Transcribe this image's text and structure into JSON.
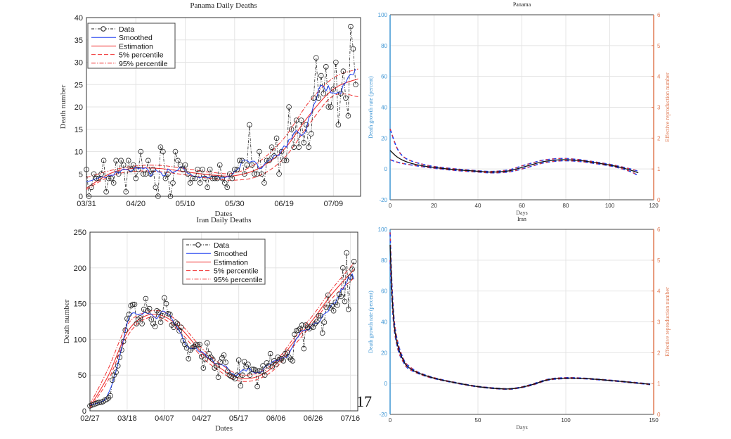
{
  "page_number": "17",
  "chart_data": [
    {
      "id": "panama-daily",
      "type": "line",
      "title": "Panama Daily Deaths",
      "xlabel": "Dates",
      "ylabel": "Death number",
      "ylim": [
        0,
        40
      ],
      "yticks": [
        0,
        5,
        10,
        15,
        20,
        25,
        30,
        35,
        40
      ],
      "xticks": [
        {
          "day": 0,
          "label": "03/31"
        },
        {
          "day": 20,
          "label": "04/20"
        },
        {
          "day": 40,
          "label": "05/10"
        },
        {
          "day": 60,
          "label": "05/30"
        },
        {
          "day": 80,
          "label": "06/19"
        },
        {
          "day": 100,
          "label": "07/09"
        }
      ],
      "xlim_days": [
        0,
        111
      ],
      "legend": [
        "Data",
        "Smoothed",
        "Estimation",
        "5% percentile",
        "95% percentile"
      ],
      "legend_position": "top-left",
      "data": [
        6,
        0,
        2,
        5,
        4,
        4,
        5,
        8,
        1,
        4,
        4,
        3,
        8,
        5,
        8,
        7,
        1,
        8,
        6,
        7,
        4,
        6,
        10,
        5,
        5,
        8,
        5,
        6,
        2,
        0,
        11,
        10,
        4,
        5,
        0,
        3,
        10,
        8,
        7,
        6,
        7,
        5,
        3,
        4,
        4,
        6,
        3,
        6,
        4,
        2,
        6,
        4,
        4,
        4,
        7,
        4,
        3,
        2,
        5,
        4,
        6,
        6,
        8,
        8,
        5,
        7,
        16,
        7,
        5,
        5,
        10,
        5,
        3,
        8,
        8,
        11,
        9,
        13,
        5,
        10,
        8,
        8,
        20,
        15,
        11,
        17,
        11,
        17,
        12,
        16,
        11,
        14,
        22,
        31,
        22,
        27,
        23,
        29,
        20,
        20,
        24,
        30,
        16,
        23,
        28,
        22,
        18,
        38,
        33,
        25
      ],
      "curve_days": [
        0,
        10,
        20,
        30,
        40,
        50,
        60,
        70,
        80,
        90,
        100,
        110
      ],
      "estimation": [
        1.8,
        5.2,
        6.3,
        6.2,
        5.5,
        4.8,
        4.6,
        6.3,
        10.5,
        18,
        24,
        26.3
      ],
      "p5": [
        1.5,
        4.6,
        5.6,
        5.5,
        4.8,
        4.0,
        3.6,
        4.6,
        8.5,
        16,
        22.5,
        22.3
      ],
      "p95": [
        4.2,
        5.8,
        6.8,
        6.9,
        6.2,
        5.4,
        5.2,
        7.8,
        13,
        21,
        26.5,
        28.5
      ]
    },
    {
      "id": "panama-growth",
      "type": "line",
      "title": "Panama",
      "xlabel": "Days",
      "ylabel": "Death growth rate (percent)",
      "ylabel_right": "Effective reproduction number",
      "xlim": [
        0,
        120
      ],
      "ylim": [
        -20,
        100
      ],
      "ylim_right": [
        0,
        6
      ],
      "xticks": [
        0,
        20,
        40,
        60,
        80,
        100,
        120
      ],
      "yticks": [
        -20,
        0,
        20,
        40,
        60,
        80,
        100
      ],
      "yticks_right": [
        0,
        1,
        2,
        3,
        4,
        5,
        6
      ],
      "x": [
        0,
        3,
        6,
        10,
        15,
        20,
        30,
        40,
        45,
        50,
        55,
        60,
        65,
        70,
        78,
        85,
        90,
        100,
        105,
        110,
        113
      ],
      "center": [
        12,
        8,
        5.5,
        3.5,
        2,
        1,
        -0.5,
        -1.5,
        -2,
        -1.8,
        -1,
        1,
        3,
        4.8,
        6,
        5.6,
        4.8,
        2.5,
        1,
        -1,
        -2.5
      ],
      "upper": [
        26,
        14,
        8,
        5,
        3,
        1.6,
        0,
        -1.2,
        -1.6,
        -1.3,
        -0.3,
        2,
        4,
        5.8,
        6.8,
        6.2,
        5.3,
        3,
        1.5,
        -0.2,
        -1.5
      ],
      "lower": [
        6,
        4.5,
        3.5,
        2.5,
        1.4,
        0.5,
        -1,
        -2,
        -2.5,
        -2.4,
        -1.7,
        0,
        2,
        4,
        5.3,
        5,
        4.2,
        2,
        0.3,
        -2,
        -4.5
      ]
    },
    {
      "id": "iran-daily",
      "type": "line",
      "title": "Iran Daily Deaths",
      "xlabel": "Dates",
      "ylabel": "Death number",
      "ylim": [
        0,
        250
      ],
      "yticks": [
        0,
        50,
        100,
        150,
        200,
        250
      ],
      "xticks": [
        {
          "day": 0,
          "label": "02/27"
        },
        {
          "day": 20,
          "label": "03/18"
        },
        {
          "day": 40,
          "label": "04/07"
        },
        {
          "day": 60,
          "label": "04/27"
        },
        {
          "day": 80,
          "label": "05/17"
        },
        {
          "day": 100,
          "label": "06/06"
        },
        {
          "day": 120,
          "label": "06/26"
        },
        {
          "day": 140,
          "label": "07/16"
        }
      ],
      "xlim_days": [
        0,
        144
      ],
      "legend": [
        "Data",
        "Smoothed",
        "Estimation",
        "5% percentile",
        "95% percentile"
      ],
      "legend_position": "top-center",
      "data": [
        7,
        8,
        9,
        10,
        11,
        12,
        12,
        13,
        15,
        16,
        18,
        21,
        43,
        50,
        54,
        63,
        75,
        85,
        97,
        113,
        129,
        135,
        147,
        149,
        149,
        122,
        128,
        130,
        122,
        142,
        157,
        140,
        143,
        128,
        122,
        118,
        140,
        138,
        124,
        133,
        158,
        150,
        136,
        135,
        120,
        117,
        124,
        122,
        112,
        117,
        98,
        93,
        88,
        73,
        85,
        88,
        90,
        93,
        92,
        93,
        76,
        60,
        72,
        95,
        80,
        75,
        72,
        60,
        63,
        47,
        68,
        74,
        78,
        68,
        55,
        50,
        48,
        47,
        45,
        50,
        71,
        35,
        50,
        69,
        62,
        65,
        50,
        58,
        58,
        57,
        34,
        56,
        55,
        63,
        50,
        67,
        63,
        80,
        62,
        70,
        65,
        75,
        72,
        73,
        70,
        80,
        82,
        75,
        72,
        70,
        107,
        112,
        113,
        115,
        120,
        87,
        120,
        117,
        115,
        118,
        117,
        122,
        125,
        133,
        133,
        109,
        124,
        145,
        162,
        144,
        147,
        140,
        152,
        148,
        163,
        160,
        200,
        153,
        221,
        142,
        187,
        198,
        209
      ],
      "curve_days": [
        0,
        10,
        20,
        30,
        40,
        50,
        60,
        70,
        80,
        90,
        100,
        110,
        120,
        130,
        142
      ],
      "estimation": [
        6,
        50,
        110,
        133,
        132,
        112,
        82,
        60,
        46,
        48,
        65,
        98,
        128,
        163,
        198
      ],
      "p5": [
        4,
        44,
        104,
        129,
        128,
        106,
        76,
        55,
        42,
        44,
        60,
        92,
        123,
        157,
        186
      ],
      "p95": [
        9,
        60,
        120,
        138,
        138,
        118,
        88,
        66,
        51,
        53,
        70,
        103,
        134,
        170,
        207
      ]
    },
    {
      "id": "iran-growth",
      "type": "line",
      "title": "Iran",
      "xlabel": "Days",
      "ylabel": "Death growth rate (percent)",
      "ylabel_right": "Effective reproduction number",
      "xlim": [
        0,
        150
      ],
      "ylim": [
        -20,
        100
      ],
      "ylim_right": [
        0,
        6
      ],
      "xticks": [
        0,
        50,
        100,
        150
      ],
      "yticks": [
        -20,
        0,
        20,
        40,
        60,
        80,
        100
      ],
      "yticks_right": [
        0,
        1,
        2,
        3,
        4,
        5,
        6
      ],
      "x": [
        0,
        1,
        2,
        3,
        5,
        8,
        10,
        14,
        18,
        25,
        35,
        50,
        65,
        72,
        80,
        90,
        100,
        110,
        120,
        135,
        148
      ],
      "center": [
        90,
        60,
        42,
        32,
        22,
        14,
        11,
        8,
        6,
        3.5,
        1,
        -2,
        -3.5,
        -3,
        -1,
        2.5,
        3.5,
        3.3,
        2.5,
        1,
        -0.5
      ],
      "upper": [
        98,
        66,
        46,
        35,
        24,
        15,
        12,
        8.6,
        6.4,
        3.8,
        1.2,
        -1.8,
        -3.3,
        -2.8,
        -0.7,
        2.8,
        3.8,
        3.5,
        2.7,
        1.2,
        -0.3
      ],
      "lower": [
        80,
        55,
        39,
        30,
        20,
        13,
        10,
        7.5,
        5.6,
        3.2,
        0.8,
        -2.2,
        -3.7,
        -3.2,
        -1.3,
        2.2,
        3.2,
        3.1,
        2.3,
        0.8,
        -0.7
      ]
    }
  ],
  "colors": {
    "data": "#000000",
    "smoothed": "#1f3ff0",
    "estimation": "#f03030",
    "left_axis": "#3d95d4",
    "right_axis": "#e07b55",
    "grid": "#e4e4e4"
  }
}
